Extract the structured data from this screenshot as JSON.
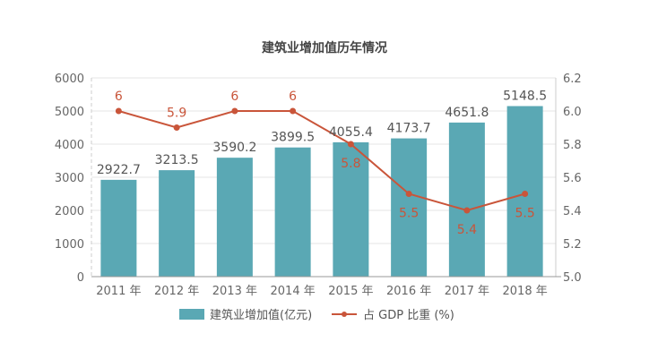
{
  "chart_data": {
    "type": "bar+line",
    "title": "建筑业增加值历年情况",
    "categories": [
      "2011 年",
      "2012 年",
      "2013 年",
      "2014 年",
      "2015 年",
      "2016 年",
      "2017 年",
      "2018 年"
    ],
    "series": [
      {
        "name": "建筑业增加值(亿元)",
        "type": "bar",
        "axis": "left",
        "color": "#5aa8b4",
        "values": [
          2922.7,
          3213.5,
          3590.2,
          3899.5,
          4055.4,
          4173.7,
          4651.8,
          5148.5
        ],
        "labels": [
          "2922.7",
          "3213.5",
          "3590.2",
          "3899.5",
          "4055.4",
          "4173.7",
          "4651.8",
          "5148.5"
        ]
      },
      {
        "name": "占 GDP 比重 (%)",
        "type": "line",
        "axis": "right",
        "color": "#c9553a",
        "values": [
          6.0,
          5.9,
          6.0,
          6.0,
          5.8,
          5.5,
          5.4,
          5.5
        ],
        "labels": [
          "6",
          "5.9",
          "6",
          "6",
          "5.8",
          "5.5",
          "5.4",
          "5.5"
        ]
      }
    ],
    "left_axis": {
      "ylim": [
        0,
        6000
      ],
      "ticks": [
        "0",
        "1000",
        "2000",
        "3000",
        "4000",
        "5000",
        "6000"
      ]
    },
    "right_axis": {
      "ylim": [
        5.0,
        6.2
      ],
      "ticks": [
        "5.0",
        "5.2",
        "5.4",
        "5.6",
        "5.8",
        "6.0",
        "6.2"
      ]
    },
    "grid": true,
    "legend": "bottom"
  }
}
